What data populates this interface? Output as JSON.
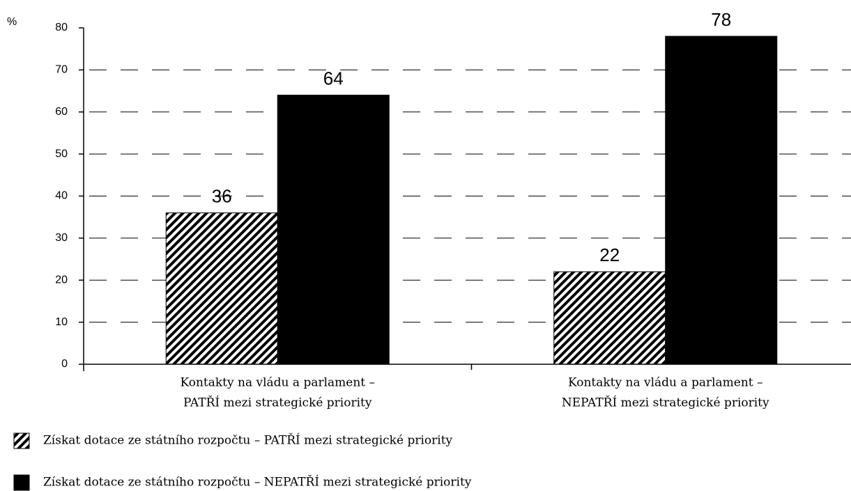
{
  "chart_data": {
    "type": "bar",
    "ylabel": "%",
    "categories": [
      [
        "Kontakty na vládu a parlament –",
        "PATŘÍ mezi strategické priority"
      ],
      [
        "Kontakty na vládu a parlament –",
        "NEPATŘÍ mezi strategické priority"
      ]
    ],
    "series": [
      {
        "name": "Získat dotace ze státního rozpočtu – PATŘÍ mezi strategické priority",
        "color": "hatch",
        "values": [
          36,
          22
        ]
      },
      {
        "name": "Získat dotace ze státního rozpočtu – NEPATŘÍ mezi strategické priority",
        "color": "#000000",
        "values": [
          64,
          78
        ]
      }
    ],
    "ylim": [
      0,
      80
    ],
    "yticks": [
      0,
      10,
      20,
      30,
      40,
      50,
      60,
      70,
      80
    ],
    "grid": true
  }
}
